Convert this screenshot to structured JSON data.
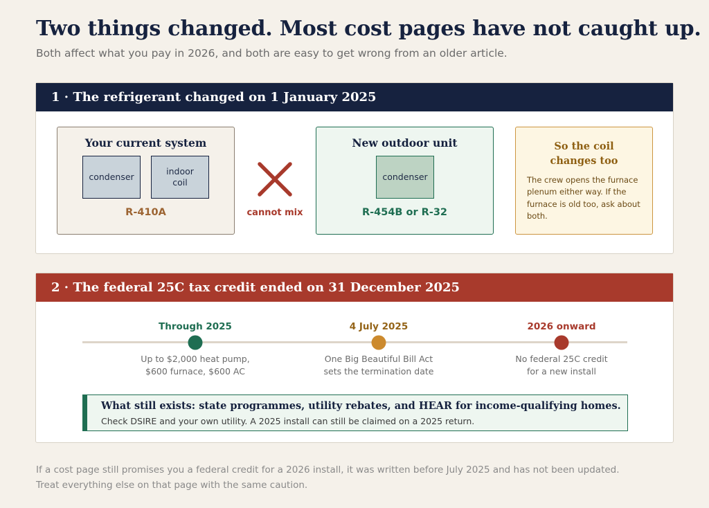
{
  "header": {
    "title": "Two things changed. Most cost pages have not caught up.",
    "subtitle": "Both affect what you pay in 2026, and both are easy to get wrong from an older article."
  },
  "section1": {
    "heading": "1 · The refrigerant changed on 1 January 2025",
    "current": {
      "title": "Your current system",
      "unit1": "condenser",
      "unit2": "indoor coil",
      "refrigerant": "R-410A"
    },
    "cannot_mix": "cannot mix",
    "new_unit": {
      "title": "New outdoor unit",
      "unit": "condenser",
      "refrigerant": "R-454B or R-32"
    },
    "coil": {
      "title": "So the coil changes too",
      "text": "The crew opens the furnace plenum either way. If the furnace is old too, ask about both."
    }
  },
  "section2": {
    "heading": "2 · The federal 25C tax credit ended on 31 December 2025",
    "timeline": [
      {
        "label": "Through 2025",
        "desc_line1": "Up to $2,000 heat pump,",
        "desc_line2": "$600 furnace, $600 AC",
        "color": "#1f6e52"
      },
      {
        "label": "4 July 2025",
        "desc_line1": "One Big Beautiful Bill Act",
        "desc_line2": "sets the termination date",
        "color": "#cc8a2e"
      },
      {
        "label": "2026 onward",
        "desc_line1": "No federal 25C credit",
        "desc_line2": "for a new install",
        "color": "#a83a2c"
      }
    ],
    "still": {
      "heading": "What still exists: state programmes, utility rebates, and HEAR for income-qualifying homes.",
      "text": "Check DSIRE and your own utility. A 2025 install can still be claimed on a 2025 return."
    }
  },
  "footer": {
    "line1": "If a cost page still promises you a federal credit for a 2026 install, it was written before July 2025 and has not been updated.",
    "line2": "Treat everything else on that page with the same caution."
  },
  "colors": {
    "navy": "#16223f",
    "red": "#a83a2c",
    "green": "#1f6e52",
    "amber": "#cc8a2e",
    "background": "#f5f1ea"
  }
}
